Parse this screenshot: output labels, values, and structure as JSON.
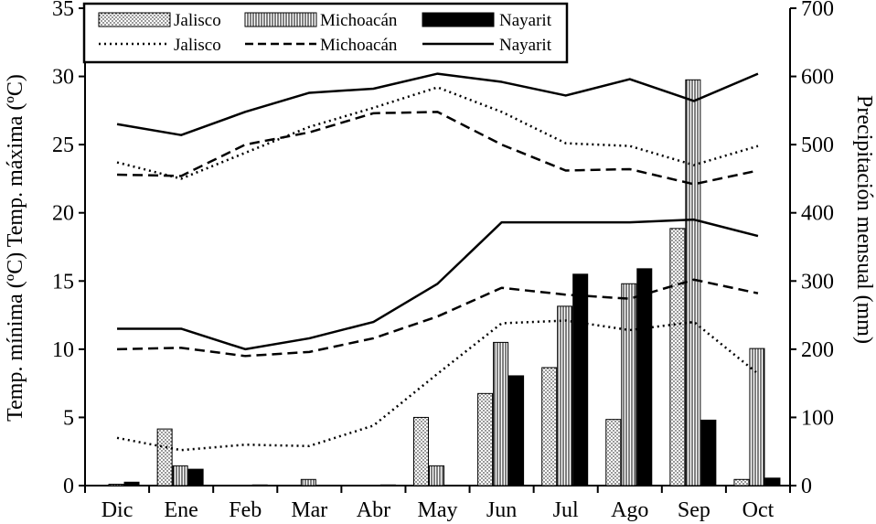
{
  "chart_data": {
    "type": "bar+line",
    "categories": [
      "Dic",
      "Ene",
      "Feb",
      "Mar",
      "Abr",
      "May",
      "Jun",
      "Jul",
      "Ago",
      "Sep",
      "Oct"
    ],
    "y_left": {
      "label": "Temp. mínima (ºC) Temp. máxima (ºC)",
      "ylim": [
        0,
        35
      ],
      "ticks": [
        0,
        5,
        10,
        15,
        20,
        25,
        30,
        35
      ]
    },
    "y_right": {
      "label": "Precipitación mensual (mm)",
      "ylim": [
        0,
        700
      ],
      "ticks": [
        0,
        100,
        200,
        300,
        400,
        500,
        600,
        700
      ]
    },
    "bar_series": [
      {
        "name": "Jalisco",
        "pattern": "dots",
        "values": [
          0,
          83,
          0,
          0,
          0,
          100,
          135,
          173,
          97,
          377,
          9
        ]
      },
      {
        "name": "Michoacán",
        "pattern": "vertical-lines",
        "values": [
          2,
          29,
          0,
          9,
          0,
          29,
          210,
          263,
          296,
          595,
          201
        ]
      },
      {
        "name": "Nayarit",
        "pattern": "solid",
        "values": [
          5,
          24,
          1,
          0,
          1,
          0,
          161,
          310,
          318,
          96,
          11
        ]
      }
    ],
    "line_series_max": [
      {
        "name": "Jalisco",
        "dash": "dotted",
        "values": [
          23.7,
          22.5,
          24.4,
          26.3,
          27.7,
          29.2,
          27.4,
          25.1,
          24.9,
          23.5,
          24.9
        ]
      },
      {
        "name": "Michoacán",
        "dash": "dashed",
        "values": [
          22.8,
          22.7,
          25.0,
          25.9,
          27.3,
          27.4,
          25.0,
          23.1,
          23.2,
          22.1,
          23.1
        ]
      },
      {
        "name": "Nayarit",
        "dash": "solid",
        "values": [
          26.5,
          25.7,
          27.4,
          28.8,
          29.1,
          30.2,
          29.6,
          28.6,
          29.8,
          28.2,
          30.2
        ]
      }
    ],
    "line_series_min": [
      {
        "name": "Jalisco",
        "dash": "dotted",
        "values": [
          3.5,
          2.6,
          3.0,
          2.9,
          4.4,
          8.2,
          11.9,
          12.1,
          11.4,
          12.0,
          8.2
        ]
      },
      {
        "name": "Michoacán",
        "dash": "dashed",
        "values": [
          10.0,
          10.1,
          9.5,
          9.8,
          10.8,
          12.4,
          14.5,
          14.0,
          13.7,
          15.1,
          14.1
        ]
      },
      {
        "name": "Nayarit",
        "dash": "solid",
        "values": [
          11.5,
          11.5,
          10.0,
          10.8,
          12.0,
          14.8,
          19.3,
          19.3,
          19.3,
          19.5,
          18.3
        ]
      }
    ],
    "legend": {
      "position": "top-left",
      "bar_entries": [
        "Jalisco",
        "Michoacán",
        "Nayarit"
      ],
      "line_entries": [
        "Jalisco",
        "Michoacán",
        "Nayarit"
      ]
    },
    "grid": false
  }
}
